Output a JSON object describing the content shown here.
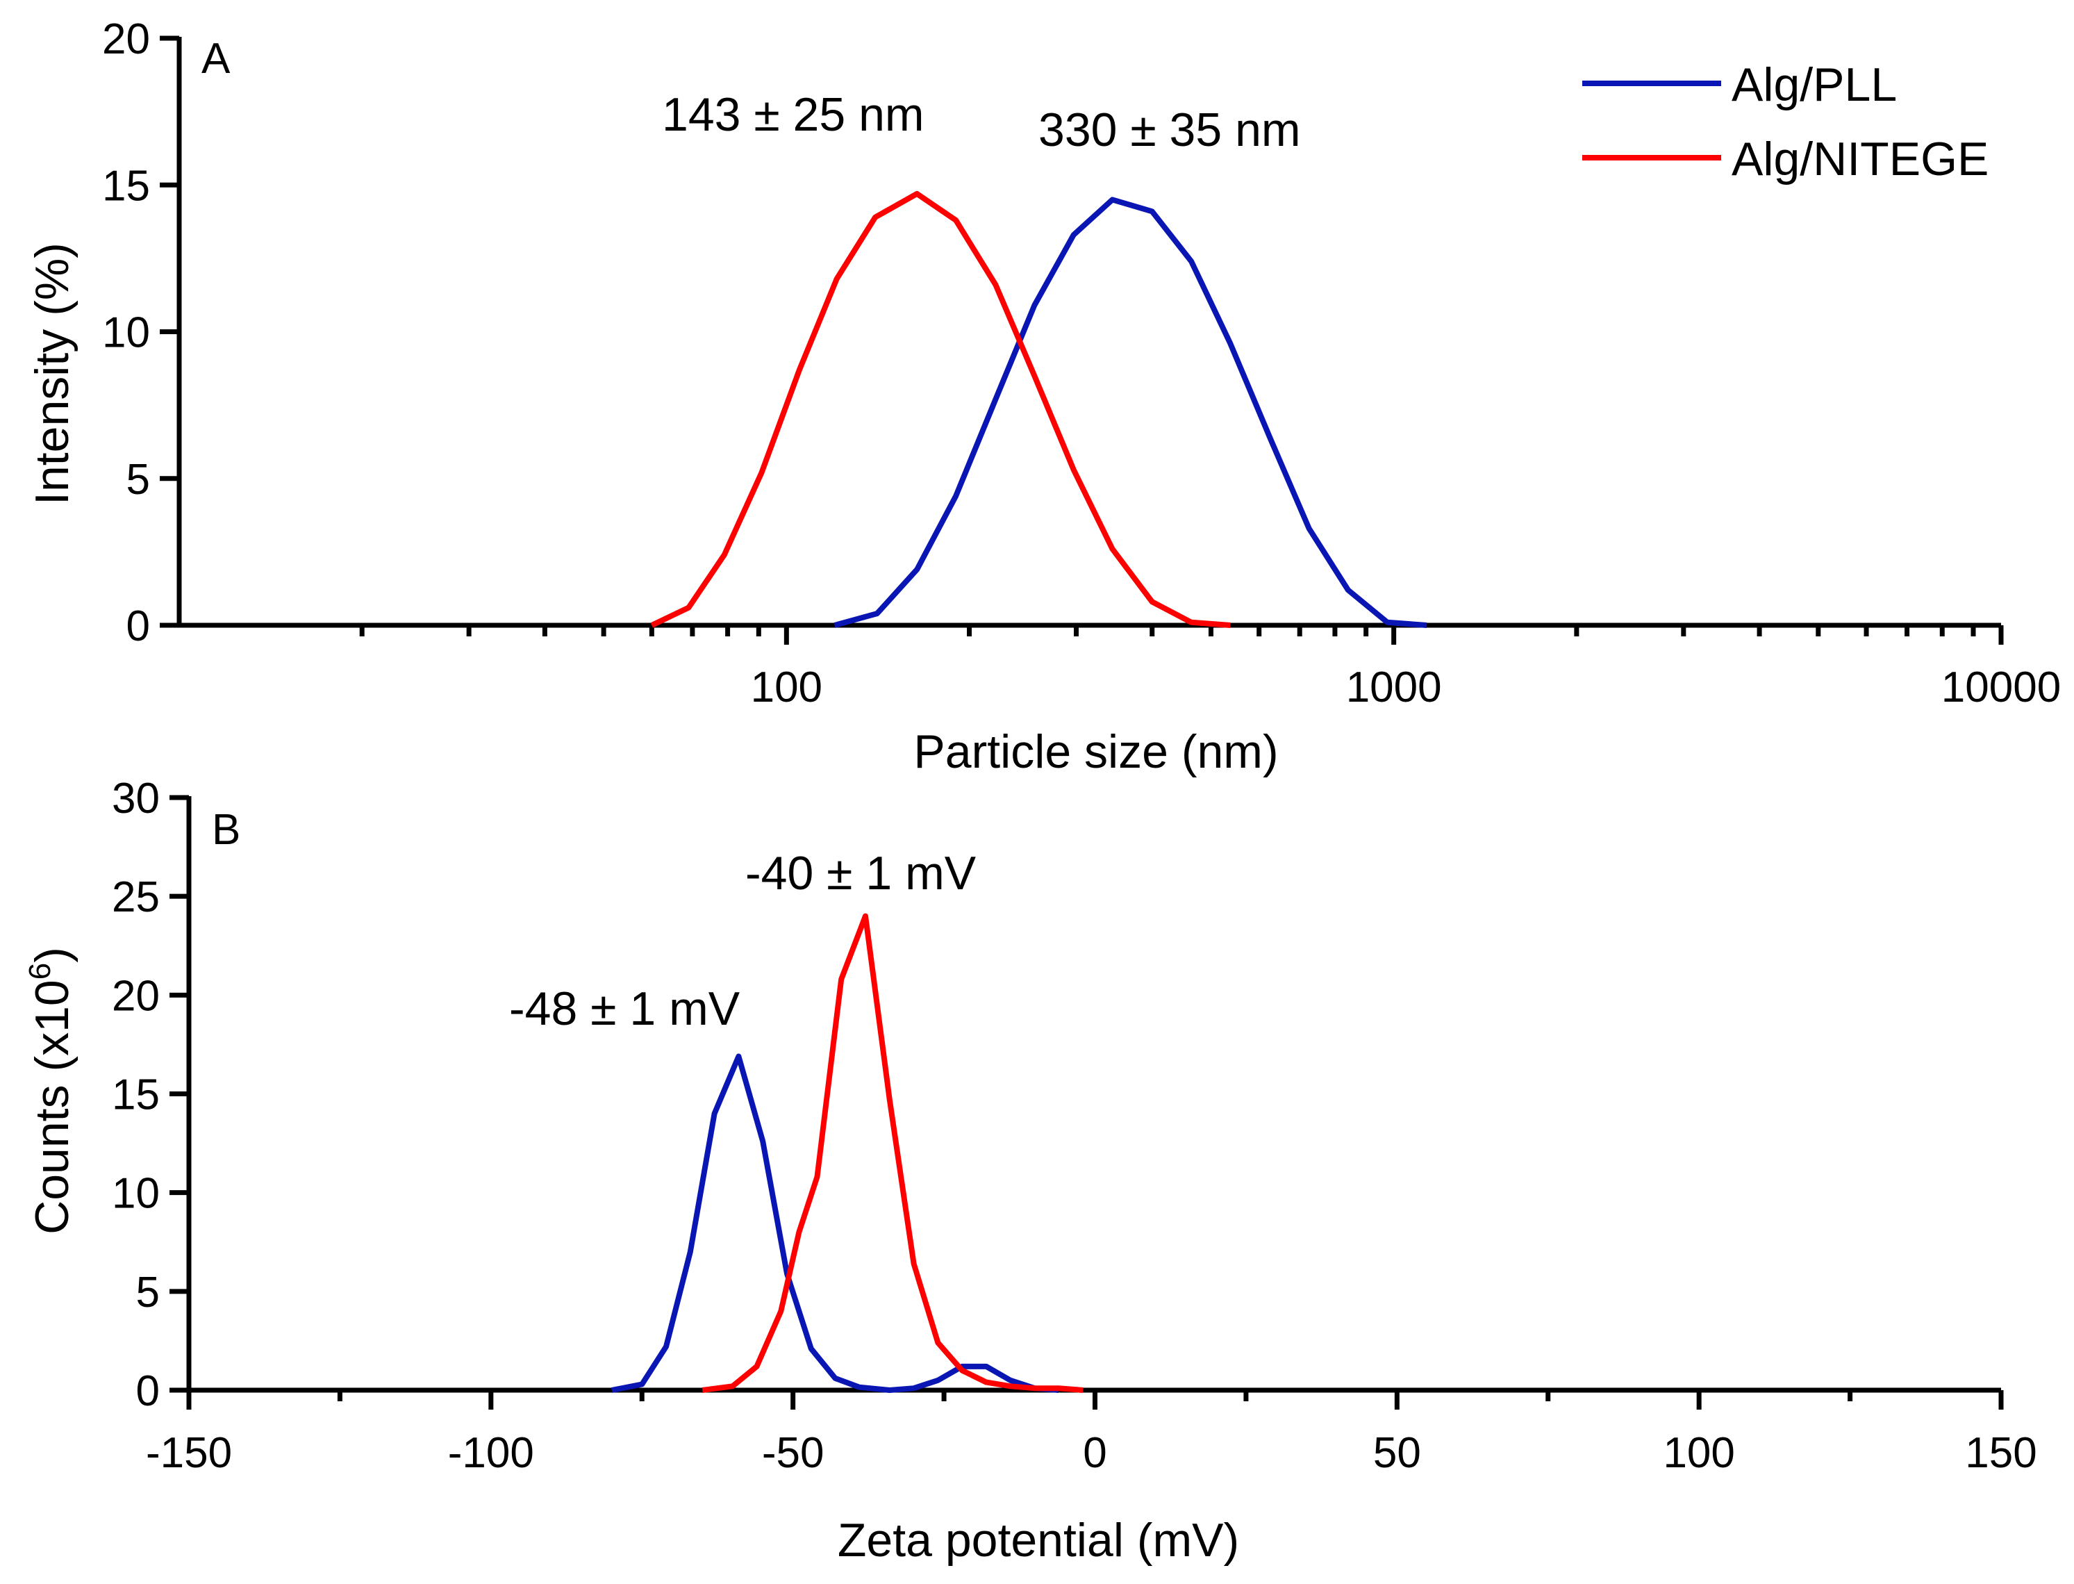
{
  "colors": {
    "alg_pll": "#0a16b4",
    "alg_nitege": "#ff0000",
    "axis": "#000000"
  },
  "chart_data": [
    {
      "panel": "A",
      "type": "line",
      "xscale": "log",
      "xlabel": "Particle size (nm)",
      "ylabel": "Intensity (%)",
      "xlim": [
        10,
        10000
      ],
      "ylim": [
        0,
        20
      ],
      "x_tick_labels": [
        "100",
        "1000",
        "10000"
      ],
      "y_ticks": [
        0,
        5,
        10,
        15,
        20
      ],
      "legend_position": "top-right",
      "annotations": [
        "143 ± 25 nm",
        "330 ± 35 nm"
      ],
      "series": [
        {
          "name": "Alg/PLL",
          "x": [
            120,
            141,
            164,
            190,
            221,
            256,
            297,
            344,
            400,
            464,
            538,
            625,
            725,
            841,
            976,
            1133
          ],
          "y": [
            0,
            0.4,
            1.9,
            4.4,
            7.7,
            10.9,
            13.3,
            14.5,
            14.1,
            12.4,
            9.6,
            6.4,
            3.3,
            1.2,
            0.1,
            0
          ]
        },
        {
          "name": "Alg/NITEGE",
          "x": [
            60,
            69,
            79,
            91,
            105,
            121,
            140,
            164,
            190,
            221,
            256,
            297,
            344,
            400,
            464,
            538
          ],
          "y": [
            0,
            0.6,
            2.4,
            5.2,
            8.7,
            11.8,
            13.9,
            14.7,
            13.8,
            11.6,
            8.5,
            5.3,
            2.6,
            0.8,
            0.1,
            0
          ]
        }
      ]
    },
    {
      "panel": "B",
      "type": "line",
      "xlabel": "Zeta potential (mV)",
      "ylabel": "Counts (x10",
      "ylabel_superscript": "6",
      "ylabel_suffix": ")",
      "xlim": [
        -150,
        150
      ],
      "ylim": [
        0,
        30
      ],
      "x_ticks": [
        -150,
        -100,
        -50,
        0,
        50,
        100,
        150
      ],
      "y_ticks": [
        0,
        5,
        10,
        15,
        20,
        25,
        30
      ],
      "annotations": [
        "-40 ± 1 mV",
        "-48 ± 1 mV"
      ],
      "series": [
        {
          "name": "Alg/PLL",
          "x": [
            -80,
            -75,
            -71,
            -67,
            -63,
            -59,
            -55,
            -51,
            -47,
            -43,
            -39,
            -34,
            -30,
            -26,
            -22,
            -18,
            -14,
            -10,
            -6
          ],
          "y": [
            0,
            0.3,
            2.2,
            7,
            14,
            16.9,
            12.6,
            5.9,
            2.1,
            0.6,
            0.15,
            0,
            0.1,
            0.5,
            1.2,
            1.2,
            0.5,
            0.1,
            0
          ]
        },
        {
          "name": "Alg/NITEGE",
          "x": [
            -65,
            -60,
            -56,
            -52,
            -49,
            -46,
            -42,
            -38,
            -34,
            -30,
            -26,
            -22,
            -18,
            -14,
            -10,
            -6,
            -2
          ],
          "y": [
            0,
            0.2,
            1.2,
            4,
            8,
            10.8,
            20.8,
            24,
            14.7,
            6.4,
            2.4,
            1,
            0.4,
            0.2,
            0.1,
            0.1,
            0
          ]
        }
      ]
    }
  ],
  "panels": {
    "a": {
      "letter": "A"
    },
    "b": {
      "letter": "B"
    }
  },
  "legend": {
    "items": [
      "Alg/PLL",
      "Alg/NITEGE"
    ]
  }
}
